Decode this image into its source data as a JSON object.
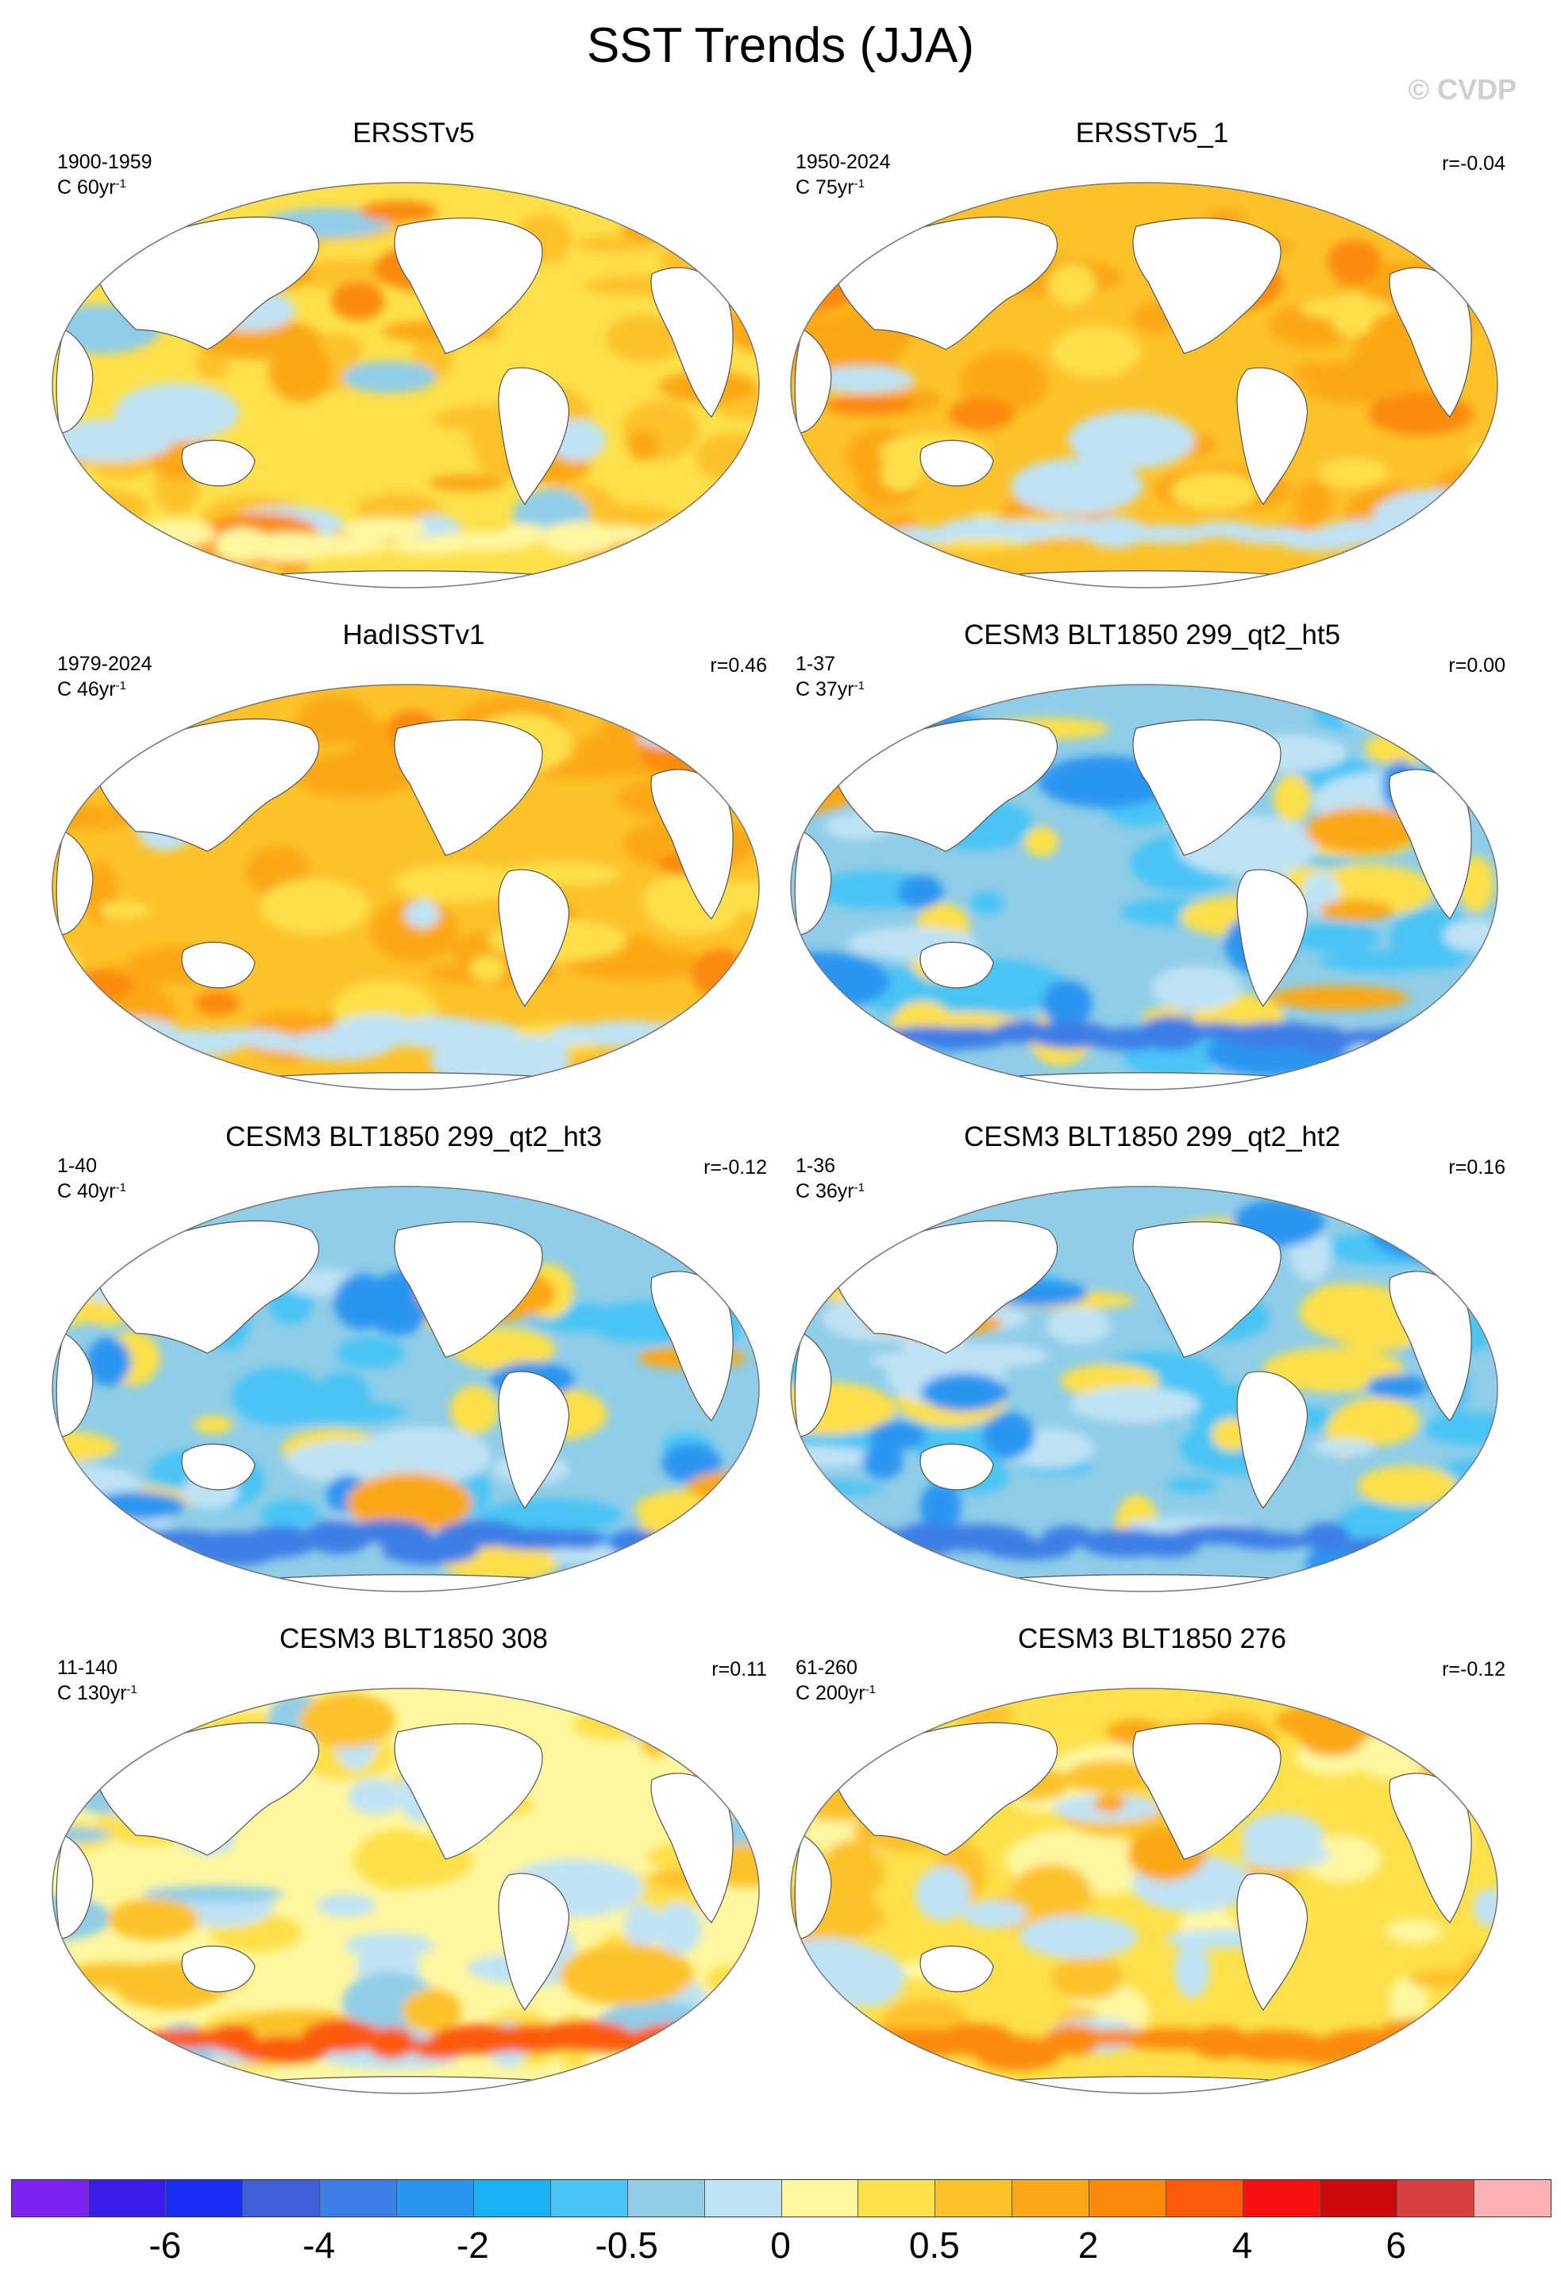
{
  "title": "SST Trends (JJA)",
  "watermark": "© CVDP",
  "panels": [
    {
      "title": "ERSSTv5",
      "period": "1900-1959",
      "trend": "C 60yr",
      "exp": "-1",
      "r": "",
      "scheme": "warm1"
    },
    {
      "title": "ERSSTv5_1",
      "period": "1950-2024",
      "trend": "C 75yr",
      "exp": "-1",
      "r": "r=-0.04",
      "scheme": "warm2"
    },
    {
      "title": "HadISSTv1",
      "period": "1979-2024",
      "trend": "C 46yr",
      "exp": "-1",
      "r": "r=0.46",
      "scheme": "warm2"
    },
    {
      "title": "CESM3 BLT1850 299_qt2_ht5",
      "period": "1-37",
      "trend": "C 37yr",
      "exp": "-1",
      "r": "r=0.00",
      "scheme": "cool"
    },
    {
      "title": "CESM3 BLT1850 299_qt2_ht3",
      "period": "1-40",
      "trend": "C 40yr",
      "exp": "-1",
      "r": "r=-0.12",
      "scheme": "cool"
    },
    {
      "title": "CESM3 BLT1850 299_qt2_ht2",
      "period": "1-36",
      "trend": "C 36yr",
      "exp": "-1",
      "r": "r=0.16",
      "scheme": "cool"
    },
    {
      "title": "CESM3 BLT1850 308",
      "period": "11-140",
      "trend": "C 130yr",
      "exp": "-1",
      "r": "r=0.11",
      "scheme": "mixed"
    },
    {
      "title": "CESM3 BLT1850 276",
      "period": "61-260",
      "trend": "C 200yr",
      "exp": "-1",
      "r": "r=-0.12",
      "scheme": "mixed2"
    }
  ],
  "colorbar": {
    "colors": [
      "#7b22f0",
      "#3a1be8",
      "#1a2df2",
      "#3f5fd9",
      "#3e7ee6",
      "#2a95f0",
      "#18b2f5",
      "#4ac4f5",
      "#8fcde8",
      "#bfe3f5",
      "#fff7a0",
      "#fde04a",
      "#fdc22a",
      "#fba818",
      "#fb8a0c",
      "#fb5a0a",
      "#f80f0f",
      "#cc0a0a",
      "#d84040",
      "#fcb2b2"
    ],
    "labels": [
      "-6",
      "-4",
      "-2",
      "-0.5",
      "0",
      "0.5",
      "2",
      "4",
      "6"
    ],
    "label_positions": [
      2,
      4,
      6,
      8,
      10,
      12,
      14,
      16,
      18
    ]
  }
}
